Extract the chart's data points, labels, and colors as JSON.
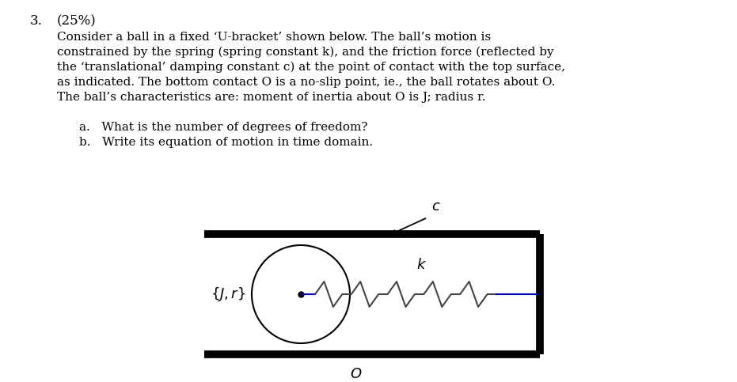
{
  "bg_color": "#ffffff",
  "text_color": "#000000",
  "spring_color": "#444444",
  "blue_line_color": "#0000bb",
  "dot_color": "#000000",
  "bracket_lw": 7,
  "font_size_text": 11.0,
  "font_size_label": 13,
  "font_size_number": 12,
  "para_line1": "Consider a ball in a fixed ‘U-bracket’ shown below. The ball’s motion is",
  "para_line2": "constrained by the spring (spring constant k), and the friction force (reflected by",
  "para_line3": "the ‘translational’ damping constant c) at the point of contact with the top surface,",
  "para_line4": "as indicated. The bottom contact O is a no-slip point, ie., the ball rotates about O.",
  "para_line5": "The ball’s characteristics are: moment of inertia about O is J; radius r.",
  "item_a": "a.   What is the number of degrees of freedom?",
  "item_b": "b.   Write its equation of motion in time domain."
}
